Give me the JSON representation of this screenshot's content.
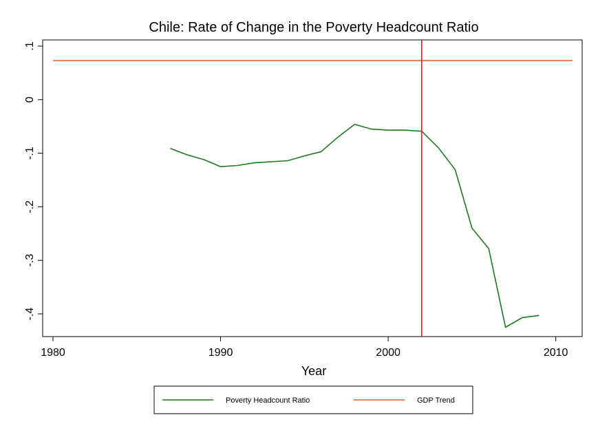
{
  "chart_data": {
    "type": "line",
    "title": "Chile: Rate of Change in the Poverty Headcount Ratio",
    "xlabel": "Year",
    "ylabel": "",
    "xlim": [
      1980,
      2011
    ],
    "ylim": [
      -0.43,
      0.11
    ],
    "xticks": [
      1980,
      1990,
      2000,
      2010
    ],
    "xtick_labels": [
      "1980",
      "1990",
      "2000",
      "2010"
    ],
    "yticks": [
      0.1,
      0,
      -0.1,
      -0.2,
      -0.3,
      -0.4
    ],
    "ytick_labels": [
      ".1",
      "0",
      "-.1",
      "-.2",
      "-.3",
      "-.4"
    ],
    "grid": false,
    "legend_position": "bottom",
    "series": [
      {
        "name": "Poverty Headcount Ratio",
        "color": "#1a7a1a",
        "x": [
          1987,
          1988,
          1989,
          1990,
          1991,
          1992,
          1993,
          1994,
          1995,
          1996,
          1997,
          1998,
          1999,
          2000,
          2001,
          2002,
          2003,
          2004,
          2005,
          2006,
          2007,
          2008,
          2009
        ],
        "y": [
          -0.091,
          -0.103,
          -0.112,
          -0.125,
          -0.123,
          -0.118,
          -0.116,
          -0.114,
          -0.105,
          -0.097,
          -0.07,
          -0.046,
          -0.055,
          -0.057,
          -0.057,
          -0.059,
          -0.09,
          -0.131,
          -0.24,
          -0.278,
          -0.425,
          -0.407,
          -0.403
        ]
      },
      {
        "name": "GDP Trend",
        "color": "#e8541e",
        "x": [
          1980,
          2011
        ],
        "y": [
          0.073,
          0.073
        ]
      }
    ],
    "vlines": [
      {
        "x": 2002,
        "color": "#e8142e"
      }
    ]
  }
}
